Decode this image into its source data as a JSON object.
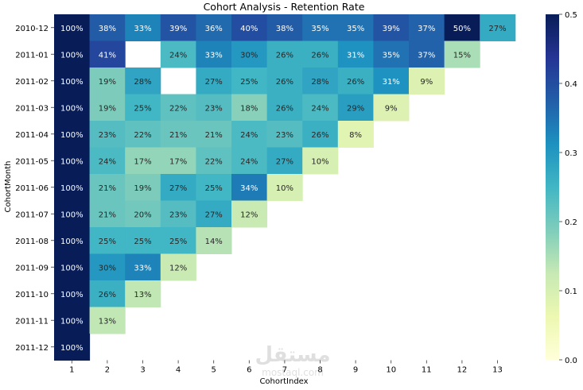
{
  "chart_data": {
    "type": "heatmap",
    "title": "Cohort Analysis - Retention Rate",
    "xlabel": "CohortIndex",
    "ylabel": "CohortMonth",
    "x_categories": [
      "1",
      "2",
      "3",
      "4",
      "5",
      "6",
      "7",
      "8",
      "9",
      "10",
      "11",
      "12",
      "13"
    ],
    "y_categories": [
      "2010-12",
      "2011-01",
      "2011-02",
      "2011-03",
      "2011-04",
      "2011-05",
      "2011-06",
      "2011-07",
      "2011-08",
      "2011-09",
      "2011-10",
      "2011-11",
      "2011-12"
    ],
    "values": [
      [
        1.0,
        0.38,
        0.33,
        0.39,
        0.36,
        0.4,
        0.38,
        0.35,
        0.35,
        0.39,
        0.37,
        0.5,
        0.27
      ],
      [
        1.0,
        0.41,
        null,
        0.24,
        0.33,
        0.3,
        0.26,
        0.26,
        0.31,
        0.35,
        0.37,
        0.15,
        null
      ],
      [
        1.0,
        0.19,
        0.28,
        null,
        0.27,
        0.25,
        0.26,
        0.28,
        0.26,
        0.31,
        0.09,
        null,
        null
      ],
      [
        1.0,
        0.19,
        0.25,
        0.22,
        0.23,
        0.18,
        0.26,
        0.24,
        0.29,
        0.09,
        null,
        null,
        null
      ],
      [
        1.0,
        0.23,
        0.22,
        0.21,
        0.21,
        0.24,
        0.23,
        0.26,
        0.08,
        null,
        null,
        null,
        null
      ],
      [
        1.0,
        0.24,
        0.17,
        0.17,
        0.22,
        0.24,
        0.27,
        0.1,
        null,
        null,
        null,
        null,
        null
      ],
      [
        1.0,
        0.21,
        0.19,
        0.27,
        0.25,
        0.34,
        0.1,
        null,
        null,
        null,
        null,
        null,
        null
      ],
      [
        1.0,
        0.21,
        0.2,
        0.23,
        0.27,
        0.12,
        null,
        null,
        null,
        null,
        null,
        null,
        null
      ],
      [
        1.0,
        0.25,
        0.25,
        0.25,
        0.14,
        null,
        null,
        null,
        null,
        null,
        null,
        null,
        null
      ],
      [
        1.0,
        0.3,
        0.33,
        0.12,
        null,
        null,
        null,
        null,
        null,
        null,
        null,
        null,
        null
      ],
      [
        1.0,
        0.26,
        0.13,
        null,
        null,
        null,
        null,
        null,
        null,
        null,
        null,
        null,
        null
      ],
      [
        1.0,
        0.13,
        null,
        null,
        null,
        null,
        null,
        null,
        null,
        null,
        null,
        null,
        null
      ],
      [
        1.0,
        null,
        null,
        null,
        null,
        null,
        null,
        null,
        null,
        null,
        null,
        null,
        null
      ]
    ],
    "value_format": "percent",
    "colormap": "YlGnBu",
    "color_range": [
      0.0,
      0.5
    ],
    "colorbar_ticks": [
      "0.0",
      "0.1",
      "0.2",
      "0.3",
      "0.4",
      "0.5"
    ]
  },
  "watermark": {
    "text_ar": "مستقل",
    "text_latin": "mostaql.com"
  }
}
